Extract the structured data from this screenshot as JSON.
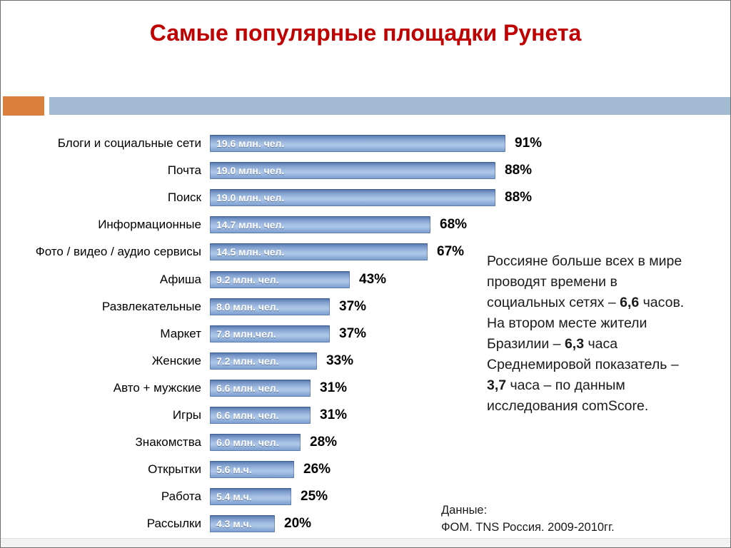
{
  "slide": {
    "title": "Самые популярные площадки Рунета",
    "source": {
      "line1": "Данные:",
      "line2": "ФОМ. TNS Россия. 2009-2010гг."
    }
  },
  "colors": {
    "title_red": "#c00000",
    "accent_orange": "#d9803f",
    "accent_blue_band": "#a3bad3",
    "bar_blue_base": "#7b9ccb",
    "bar_blue_light": "#aec7e7",
    "bar_blue_dark": "#3e5d96"
  },
  "chart_data": {
    "type": "bar",
    "orientation": "horizontal",
    "title": "Самые популярные площадки Рунета",
    "xlabel": "",
    "ylabel": "",
    "xlim": [
      0,
      100
    ],
    "grid": false,
    "legend": false,
    "value_suffix": "%",
    "categories": [
      "Блоги и социальные сети",
      "Почта",
      "Поиск",
      "Информационные",
      "Фото / видео / аудио сервисы",
      "Афиша",
      "Развлекательные",
      "Маркет",
      "Женские",
      "Авто + мужские",
      "Игры",
      "Знакомства",
      "Открытки",
      "Работа",
      "Рассылки"
    ],
    "values": [
      91,
      88,
      88,
      68,
      67,
      43,
      37,
      37,
      33,
      31,
      31,
      28,
      26,
      25,
      20
    ],
    "bar_labels": [
      "19.6 млн. чел.",
      "19.0 млн. чел.",
      "19.0 млн. чел.",
      "14.7 млн. чел.",
      "14.5 млн. чел.",
      "9.2 млн. чел.",
      "8.0 млн. чел.",
      "7.8 млн.чел.",
      "7.2 млн. чел.",
      "6.6 млн. чел.",
      "6.6 млн. чел.",
      "6.0 млн. чел.",
      "5.6 м.ч.",
      "5.4 м.ч.",
      "4.3 м.ч."
    ]
  },
  "side_note": {
    "lines": [
      [
        {
          "t": "Россияне больше всех в мире",
          "b": false
        }
      ],
      [
        {
          "t": "проводят времени в",
          "b": false
        }
      ],
      [
        {
          "t": "социальных сетях – ",
          "b": false
        },
        {
          "t": "6,6",
          "b": true
        },
        {
          "t": " часов.",
          "b": false
        }
      ],
      [
        {
          "t": "На втором месте жители",
          "b": false
        }
      ],
      [
        {
          "t": "Бразилии – ",
          "b": false
        },
        {
          "t": "6,3",
          "b": true
        },
        {
          "t": " часа",
          "b": false
        }
      ],
      [
        {
          "t": "Среднемировой показатель –",
          "b": false
        }
      ],
      [
        {
          "t": "3,7",
          "b": true
        },
        {
          "t": " часа – по данным",
          "b": false
        }
      ],
      [
        {
          "t": "исследования comScore.",
          "b": false
        }
      ]
    ]
  }
}
